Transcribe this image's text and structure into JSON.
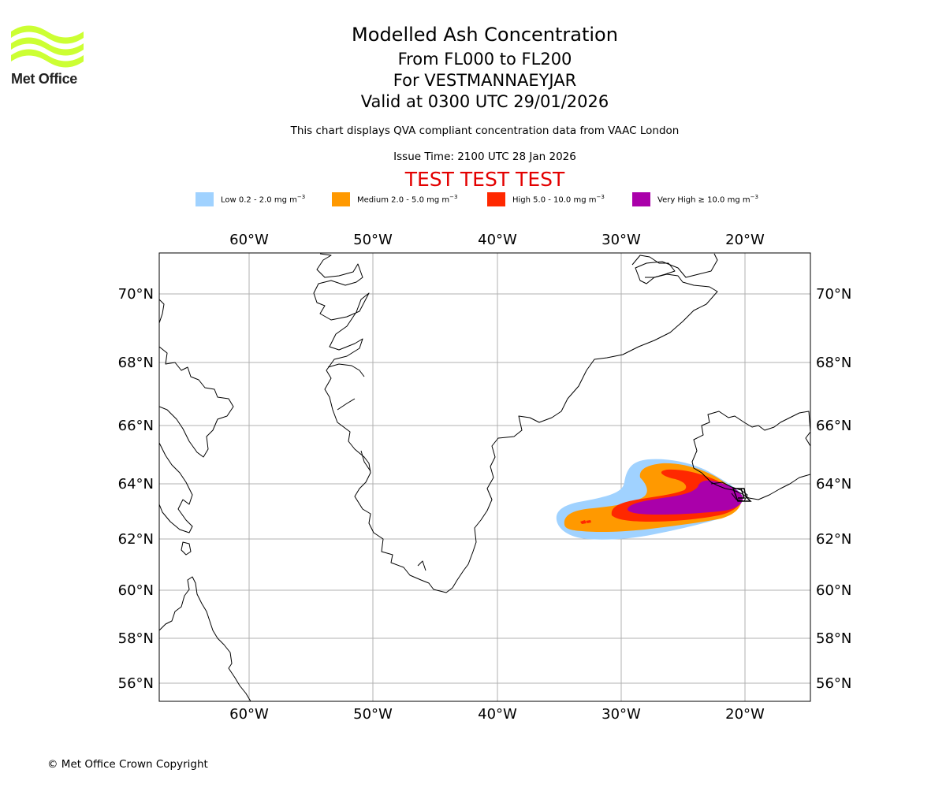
{
  "brand": {
    "name": "Met Office",
    "logo_color": "#ccff33"
  },
  "header": {
    "title": "Modelled Ash Concentration",
    "levels": "From FL000 to FL200",
    "volcano": "For VESTMANNAEYJAR",
    "valid": "Valid at 0300 UTC 29/01/2026",
    "subtitle": "This chart displays QVA compliant concentration data from VAAC London",
    "issue_time": "Issue Time: 2100 UTC 28 Jan 2026",
    "test_banner": "TEST TEST TEST"
  },
  "legend": [
    {
      "label": "Low 0.2 - 2.0 mg m",
      "unit_exp": "−3",
      "color": "#a0d2ff"
    },
    {
      "label": "Medium 2.0 - 5.0 mg m",
      "unit_exp": "−3",
      "color": "#ff9900"
    },
    {
      "label": "High 5.0 - 10.0 mg m",
      "unit_exp": "−3",
      "color": "#ff2800"
    },
    {
      "label": "Very High  ≥  10.0 mg m",
      "unit_exp": "−3",
      "color": "#aa00aa"
    }
  ],
  "map": {
    "lon_labels": [
      "60°W",
      "50°W",
      "40°W",
      "30°W",
      "20°W"
    ],
    "lon_values": [
      -60,
      -50,
      -40,
      -30,
      -20
    ],
    "lat_labels": [
      "70°N",
      "68°N",
      "66°N",
      "64°N",
      "62°N",
      "60°N",
      "58°N",
      "56°N"
    ],
    "lat_values": [
      70,
      68,
      66,
      64,
      62,
      60,
      58,
      56
    ],
    "extent": {
      "lon_min": -67.3,
      "lon_max": -14.8,
      "lat_min": 55.3,
      "lat_max": 71.2
    },
    "source_marker": "volcano-marker",
    "ash_levels": [
      "Low",
      "Medium",
      "High",
      "Very High"
    ]
  },
  "footer": {
    "copyright": "© Met Office Crown Copyright"
  }
}
